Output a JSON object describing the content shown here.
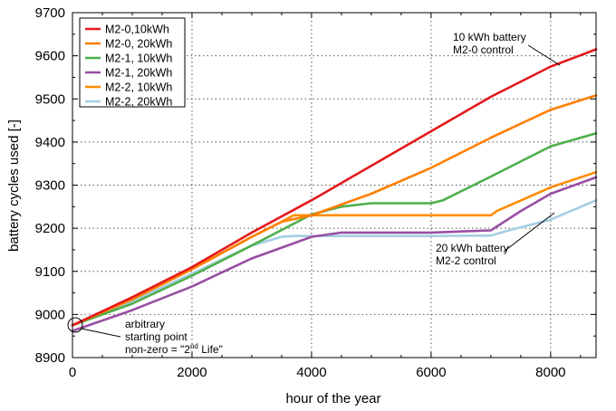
{
  "chart_data": {
    "type": "line",
    "xlabel": "hour of the year",
    "ylabel": "battery cycles used [-]",
    "xlim": [
      0,
      8760
    ],
    "ylim": [
      8900,
      9700
    ],
    "xticks": [
      0,
      2000,
      4000,
      6000,
      8000
    ],
    "yticks": [
      8900,
      9000,
      9100,
      9200,
      9300,
      9400,
      9500,
      9600,
      9700
    ],
    "grid": true,
    "legend_position": "top-left",
    "series": [
      {
        "name": "M2-0,10kWh",
        "color": "#e41a1c",
        "x": [
          0,
          1000,
          2000,
          3000,
          4000,
          5000,
          6000,
          7000,
          8000,
          8760
        ],
        "y": [
          8975,
          9040,
          9110,
          9190,
          9265,
          9345,
          9425,
          9505,
          9575,
          9615
        ]
      },
      {
        "name": "M2-0, 20kWh",
        "color": "#ff7f00",
        "x": [
          0,
          1000,
          2000,
          3000,
          3500,
          4000,
          5000,
          6000,
          7000,
          8000,
          8760
        ],
        "y": [
          8975,
          9035,
          9105,
          9180,
          9215,
          9230,
          9280,
          9340,
          9410,
          9475,
          9508
        ]
      },
      {
        "name": "M2-1, 10kWh",
        "color": "#4daf4a",
        "x": [
          0,
          1000,
          2000,
          3000,
          4000,
          4500,
          5000,
          6000,
          6200,
          7000,
          8000,
          8760
        ],
        "y": [
          8975,
          9025,
          9090,
          9160,
          9232,
          9250,
          9258,
          9258,
          9265,
          9320,
          9390,
          9420
        ]
      },
      {
        "name": "M2-1, 20kWh",
        "color": "#984ea3",
        "x": [
          0,
          1000,
          2000,
          3000,
          4000,
          4500,
          5000,
          6000,
          7000,
          7500,
          8000,
          8760
        ],
        "y": [
          8962,
          9010,
          9065,
          9130,
          9180,
          9190,
          9190,
          9190,
          9195,
          9240,
          9280,
          9318
        ]
      },
      {
        "name": "M2-2, 10kWh",
        "color": "#ff8c00",
        "x": [
          0,
          1000,
          2000,
          3000,
          3500,
          3700,
          4000,
          6000,
          7000,
          7100,
          8000,
          8760
        ],
        "y": [
          8975,
          9035,
          9105,
          9180,
          9215,
          9230,
          9230,
          9230,
          9230,
          9240,
          9295,
          9330
        ]
      },
      {
        "name": "M2-2, 20kWh",
        "color": "#a6cee3",
        "x": [
          0,
          1000,
          2000,
          3000,
          3500,
          3700,
          4000,
          6000,
          7000,
          7300,
          8000,
          8760
        ],
        "y": [
          8975,
          9030,
          9095,
          9160,
          9180,
          9182,
          9182,
          9182,
          9183,
          9195,
          9220,
          9265
        ]
      }
    ],
    "annotations": [
      {
        "lines": [
          "10 kWh battery",
          "M2-0 control"
        ],
        "target": {
          "x": 8100,
          "y": 9580
        }
      },
      {
        "lines": [
          "20 kWh battery",
          "M2-2 control"
        ],
        "target": {
          "x": 7950,
          "y": 9220
        }
      },
      {
        "lines_prefix": [
          "arbitrary",
          "starting point",
          "non-zero = \"2"
        ],
        "superscript": "nd",
        "suffix": " Life\"",
        "target": {
          "x": 40,
          "y": 8975
        }
      }
    ]
  }
}
